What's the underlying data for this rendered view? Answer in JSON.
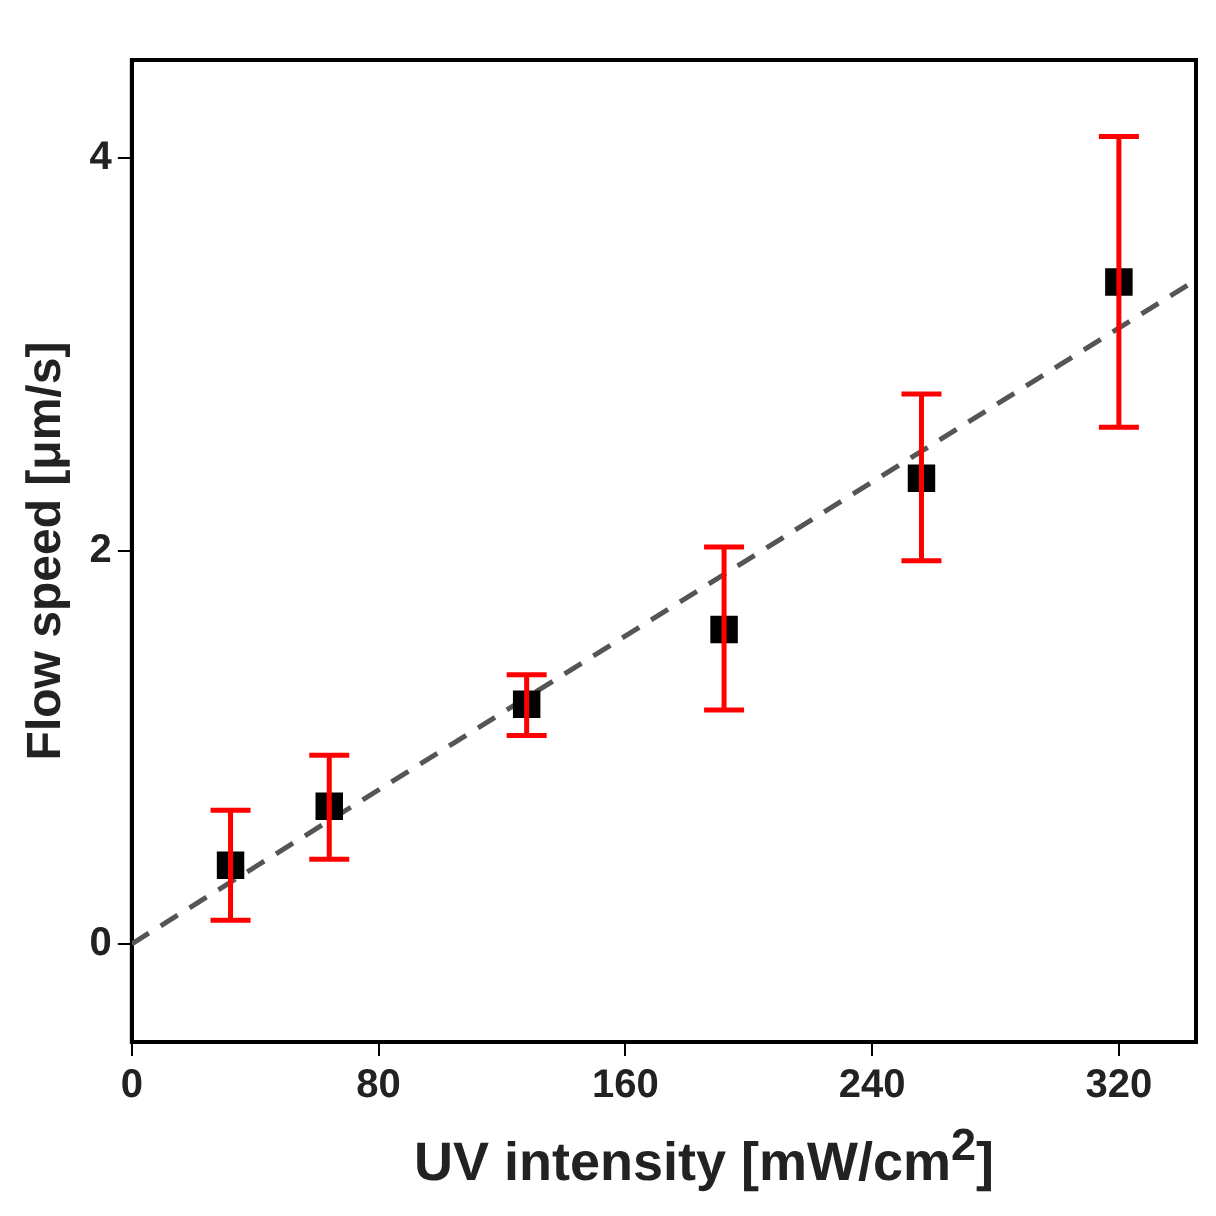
{
  "chart_data": {
    "type": "scatter",
    "xlabel": "UV intensity [mW/cm$^{2}$]",
    "ylabel": "Flow speed [μm/s]",
    "x": [
      32,
      64,
      128,
      192,
      256,
      320
    ],
    "series": [
      {
        "type": "scatter",
        "color": "#000000",
        "marker": "square",
        "values": [
          0.4,
          0.7,
          1.22,
          1.6,
          2.37,
          3.37
        ],
        "errors": [
          [
            0.12,
            0.68
          ],
          [
            0.43,
            0.96
          ],
          [
            1.06,
            1.37
          ],
          [
            1.19,
            2.02
          ],
          [
            1.95,
            2.8
          ],
          [
            2.63,
            4.11
          ]
        ]
      },
      {
        "type": "line",
        "color": "#555555",
        "marker": "none",
        "line_style": "dashed",
        "x": [
          0,
          345
        ],
        "values": [
          0,
          3.38
        ]
      }
    ],
    "xlim": [
      0,
      345
    ],
    "xticks": [
      0,
      80,
      160,
      240,
      320
    ],
    "ylim": [
      -0.5,
      4.5
    ],
    "yticks": [
      0,
      2,
      4
    ],
    "grid": false,
    "legend": false
  }
}
